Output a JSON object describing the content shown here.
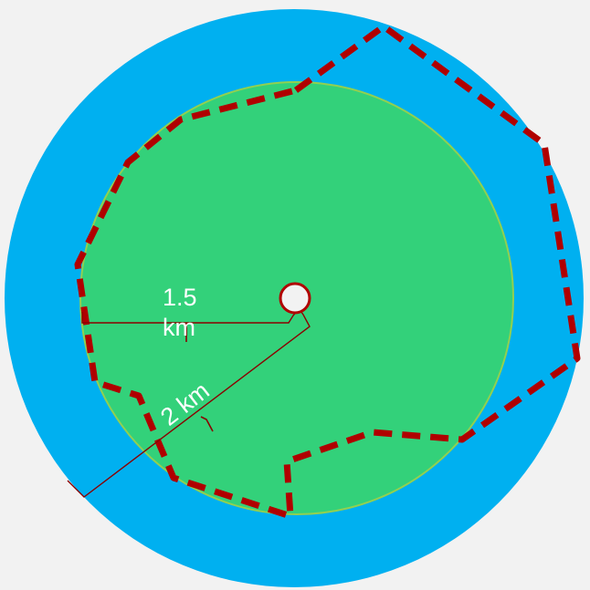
{
  "diagram": {
    "labels": {
      "inner_radius_value": "1.5",
      "inner_radius_unit": "km",
      "outer_radius": "2 km"
    },
    "colors": {
      "background": "#f2f2f2",
      "outer_zone": "#00b0f0",
      "inner_zone": "#33d17a",
      "inner_zone_edge": "#92d050",
      "boundary": "#b00000",
      "center_point": "#f2f2f2",
      "dimension_line": "#8b0000",
      "label_text": "#ffffff"
    }
  }
}
